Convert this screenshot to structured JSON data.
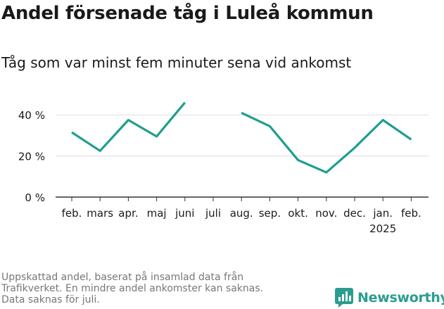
{
  "header": {
    "title": "Andel försenade tåg i Luleå kommun",
    "subtitle": "Tåg som var minst fem minuter sena vid ankomst"
  },
  "footer": {
    "note_lines": [
      "Uppskattad andel, baserat på insamlad data från",
      "Trafikverket. En mindre andel ankomster kan saknas.",
      "Data saknas för juli."
    ],
    "brand": "Newsworthy"
  },
  "colors": {
    "line": "#1f9e8f",
    "grid": "#dddddd",
    "axis": "#333333",
    "text": "#1a1a1a",
    "note": "#777777"
  },
  "chart_data": {
    "type": "line",
    "title": "Andel försenade tåg i Luleå kommun",
    "subtitle": "Tåg som var minst fem minuter sena vid ankomst",
    "categories": [
      "feb.",
      "mars",
      "apr.",
      "maj",
      "juni",
      "juli",
      "aug.",
      "sep.",
      "okt.",
      "nov.",
      "dec.",
      "jan.",
      "feb."
    ],
    "category_sublabels": [
      "",
      "",
      "",
      "",
      "",
      "",
      "",
      "",
      "",
      "",
      "",
      "2025",
      ""
    ],
    "series": [
      {
        "values": [
          31.5,
          22.5,
          37.5,
          29.5,
          46,
          null,
          41,
          34.5,
          18,
          12,
          24,
          37.5,
          28
        ]
      }
    ],
    "y_ticks": [
      0,
      20,
      40
    ],
    "y_tick_labels": [
      "0 %",
      "20 %",
      "40 %"
    ],
    "ylim": [
      0,
      50
    ],
    "grid": true,
    "legend": "none"
  }
}
